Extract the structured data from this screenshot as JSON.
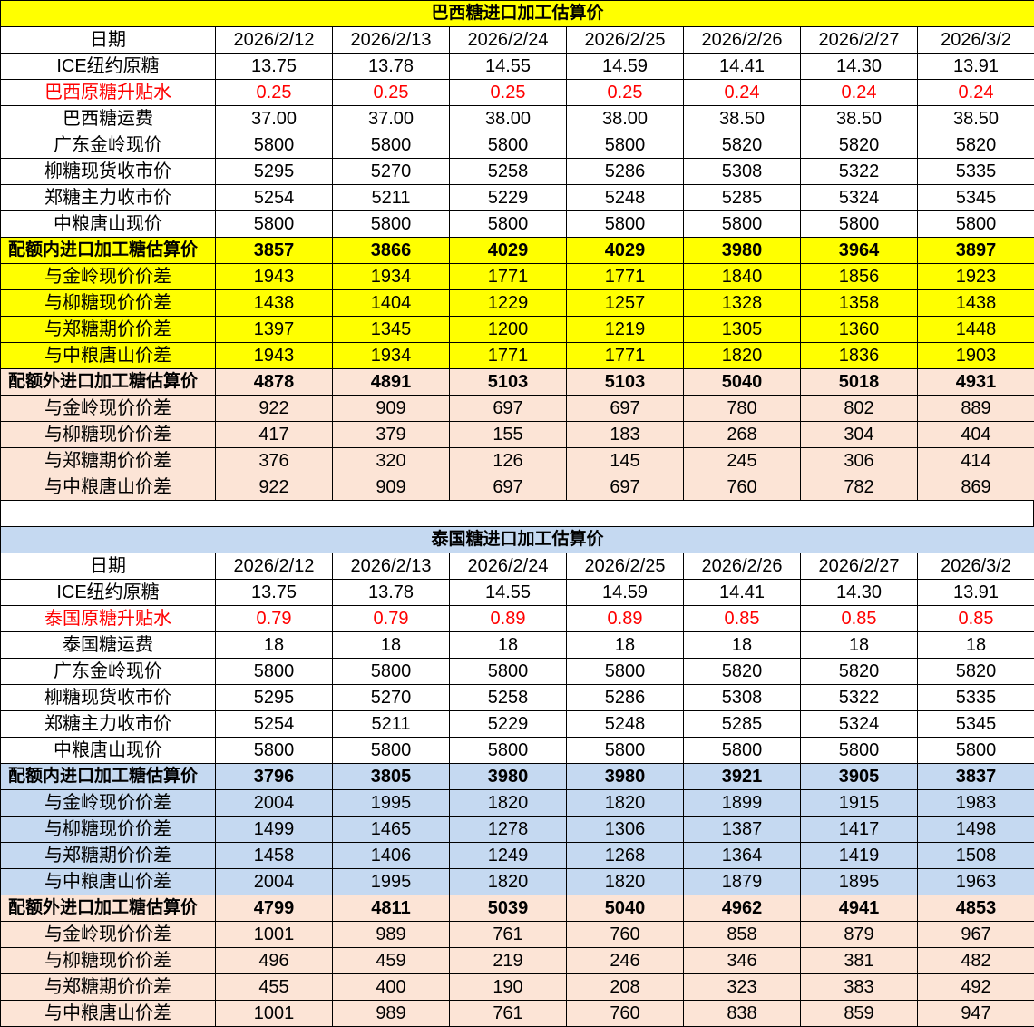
{
  "colors": {
    "yellow": "#FFFF00",
    "peach": "#FCE4D6",
    "blue": "#C5D9F1",
    "red": "#FF0000",
    "white": "#FFFFFF"
  },
  "tables": [
    {
      "title": "巴西糖进口加工估算价",
      "title_bg": "yellow",
      "rows": [
        {
          "kind": "plain",
          "bg": "white",
          "cells": [
            "日期",
            "2026/2/12",
            "2026/2/13",
            "2026/2/24",
            "2026/2/25",
            "2026/2/26",
            "2026/2/27",
            "2026/3/2"
          ]
        },
        {
          "kind": "plain",
          "bg": "white",
          "cells": [
            "ICE纽约原糖",
            "13.75",
            "13.78",
            "14.55",
            "14.59",
            "14.41",
            "14.30",
            "13.91"
          ]
        },
        {
          "kind": "red",
          "bg": "white",
          "cells": [
            "巴西原糖升贴水",
            "0.25",
            "0.25",
            "0.25",
            "0.25",
            "0.24",
            "0.24",
            "0.24"
          ]
        },
        {
          "kind": "plain",
          "bg": "white",
          "cells": [
            "巴西糖运费",
            "37.00",
            "37.00",
            "38.00",
            "38.00",
            "38.50",
            "38.50",
            "38.50"
          ]
        },
        {
          "kind": "plain",
          "bg": "white",
          "cells": [
            "广东金岭现价",
            "5800",
            "5800",
            "5800",
            "5800",
            "5820",
            "5820",
            "5820"
          ]
        },
        {
          "kind": "plain",
          "bg": "white",
          "cells": [
            "柳糖现货收市价",
            "5295",
            "5270",
            "5258",
            "5286",
            "5308",
            "5322",
            "5335"
          ]
        },
        {
          "kind": "plain",
          "bg": "white",
          "cells": [
            "郑糖主力收市价",
            "5254",
            "5211",
            "5229",
            "5248",
            "5285",
            "5324",
            "5345"
          ]
        },
        {
          "kind": "plain",
          "bg": "white",
          "cells": [
            "中粮唐山现价",
            "5800",
            "5800",
            "5800",
            "5800",
            "5800",
            "5800",
            "5800"
          ]
        },
        {
          "kind": "bold",
          "bg": "yellow",
          "cells": [
            "配额内进口加工糖估算价",
            "3857",
            "3866",
            "4029",
            "4029",
            "3980",
            "3964",
            "3897"
          ]
        },
        {
          "kind": "plain",
          "bg": "yellow",
          "cells": [
            "与金岭现价价差",
            "1943",
            "1934",
            "1771",
            "1771",
            "1840",
            "1856",
            "1923"
          ]
        },
        {
          "kind": "plain",
          "bg": "yellow",
          "cells": [
            "与柳糖现价价差",
            "1438",
            "1404",
            "1229",
            "1257",
            "1328",
            "1358",
            "1438"
          ]
        },
        {
          "kind": "plain",
          "bg": "yellow",
          "cells": [
            "与郑糖期价价差",
            "1397",
            "1345",
            "1200",
            "1219",
            "1305",
            "1360",
            "1448"
          ]
        },
        {
          "kind": "plain",
          "bg": "yellow",
          "cells": [
            "与中粮唐山价差",
            "1943",
            "1934",
            "1771",
            "1771",
            "1820",
            "1836",
            "1903"
          ]
        },
        {
          "kind": "bold",
          "bg": "peach",
          "cells": [
            "配额外进口加工糖估算价",
            "4878",
            "4891",
            "5103",
            "5103",
            "5040",
            "5018",
            "4931"
          ]
        },
        {
          "kind": "plain",
          "bg": "peach",
          "cells": [
            "与金岭现价价差",
            "922",
            "909",
            "697",
            "697",
            "780",
            "802",
            "889"
          ]
        },
        {
          "kind": "plain",
          "bg": "peach",
          "cells": [
            "与柳糖现价价差",
            "417",
            "379",
            "155",
            "183",
            "268",
            "304",
            "404"
          ]
        },
        {
          "kind": "plain",
          "bg": "peach",
          "cells": [
            "与郑糖期价价差",
            "376",
            "320",
            "126",
            "145",
            "245",
            "306",
            "414"
          ]
        },
        {
          "kind": "plain",
          "bg": "peach",
          "cells": [
            "与中粮唐山价差",
            "922",
            "909",
            "697",
            "697",
            "760",
            "782",
            "869"
          ]
        }
      ]
    },
    {
      "title": "泰国糖进口加工估算价",
      "title_bg": "blue",
      "rows": [
        {
          "kind": "plain",
          "bg": "white",
          "cells": [
            "日期",
            "2026/2/12",
            "2026/2/13",
            "2026/2/24",
            "2026/2/25",
            "2026/2/26",
            "2026/2/27",
            "2026/3/2"
          ]
        },
        {
          "kind": "plain",
          "bg": "white",
          "cells": [
            "ICE纽约原糖",
            "13.75",
            "13.78",
            "14.55",
            "14.59",
            "14.41",
            "14.30",
            "13.91"
          ]
        },
        {
          "kind": "red",
          "bg": "white",
          "cells": [
            "泰国原糖升贴水",
            "0.79",
            "0.79",
            "0.89",
            "0.89",
            "0.85",
            "0.85",
            "0.85"
          ]
        },
        {
          "kind": "plain",
          "bg": "white",
          "cells": [
            "泰国糖运费",
            "18",
            "18",
            "18",
            "18",
            "18",
            "18",
            "18"
          ]
        },
        {
          "kind": "plain",
          "bg": "white",
          "cells": [
            "广东金岭现价",
            "5800",
            "5800",
            "5800",
            "5800",
            "5820",
            "5820",
            "5820"
          ]
        },
        {
          "kind": "plain",
          "bg": "white",
          "cells": [
            "柳糖现货收市价",
            "5295",
            "5270",
            "5258",
            "5286",
            "5308",
            "5322",
            "5335"
          ]
        },
        {
          "kind": "plain",
          "bg": "white",
          "cells": [
            "郑糖主力收市价",
            "5254",
            "5211",
            "5229",
            "5248",
            "5285",
            "5324",
            "5345"
          ]
        },
        {
          "kind": "plain",
          "bg": "white",
          "cells": [
            "中粮唐山现价",
            "5800",
            "5800",
            "5800",
            "5800",
            "5800",
            "5800",
            "5800"
          ]
        },
        {
          "kind": "bold",
          "bg": "blue",
          "cells": [
            "配额内进口加工糖估算价",
            "3796",
            "3805",
            "3980",
            "3980",
            "3921",
            "3905",
            "3837"
          ]
        },
        {
          "kind": "plain",
          "bg": "blue",
          "cells": [
            "与金岭现价价差",
            "2004",
            "1995",
            "1820",
            "1820",
            "1899",
            "1915",
            "1983"
          ]
        },
        {
          "kind": "plain",
          "bg": "blue",
          "cells": [
            "与柳糖现价价差",
            "1499",
            "1465",
            "1278",
            "1306",
            "1387",
            "1417",
            "1498"
          ]
        },
        {
          "kind": "plain",
          "bg": "blue",
          "cells": [
            "与郑糖期价价差",
            "1458",
            "1406",
            "1249",
            "1268",
            "1364",
            "1419",
            "1508"
          ]
        },
        {
          "kind": "plain",
          "bg": "blue",
          "cells": [
            "与中粮唐山价差",
            "2004",
            "1995",
            "1820",
            "1820",
            "1879",
            "1895",
            "1963"
          ]
        },
        {
          "kind": "bold",
          "bg": "peach",
          "cells": [
            "配额外进口加工糖估算价",
            "4799",
            "4811",
            "5039",
            "5040",
            "4962",
            "4941",
            "4853"
          ]
        },
        {
          "kind": "plain",
          "bg": "peach",
          "cells": [
            "与金岭现价价差",
            "1001",
            "989",
            "761",
            "760",
            "858",
            "879",
            "967"
          ]
        },
        {
          "kind": "plain",
          "bg": "peach",
          "cells": [
            "与柳糖现价价差",
            "496",
            "459",
            "219",
            "246",
            "346",
            "381",
            "482"
          ]
        },
        {
          "kind": "plain",
          "bg": "peach",
          "cells": [
            "与郑糖期价价差",
            "455",
            "400",
            "190",
            "208",
            "323",
            "383",
            "492"
          ]
        },
        {
          "kind": "plain",
          "bg": "peach",
          "cells": [
            "与中粮唐山价差",
            "1001",
            "989",
            "761",
            "760",
            "838",
            "859",
            "947"
          ]
        }
      ]
    }
  ]
}
